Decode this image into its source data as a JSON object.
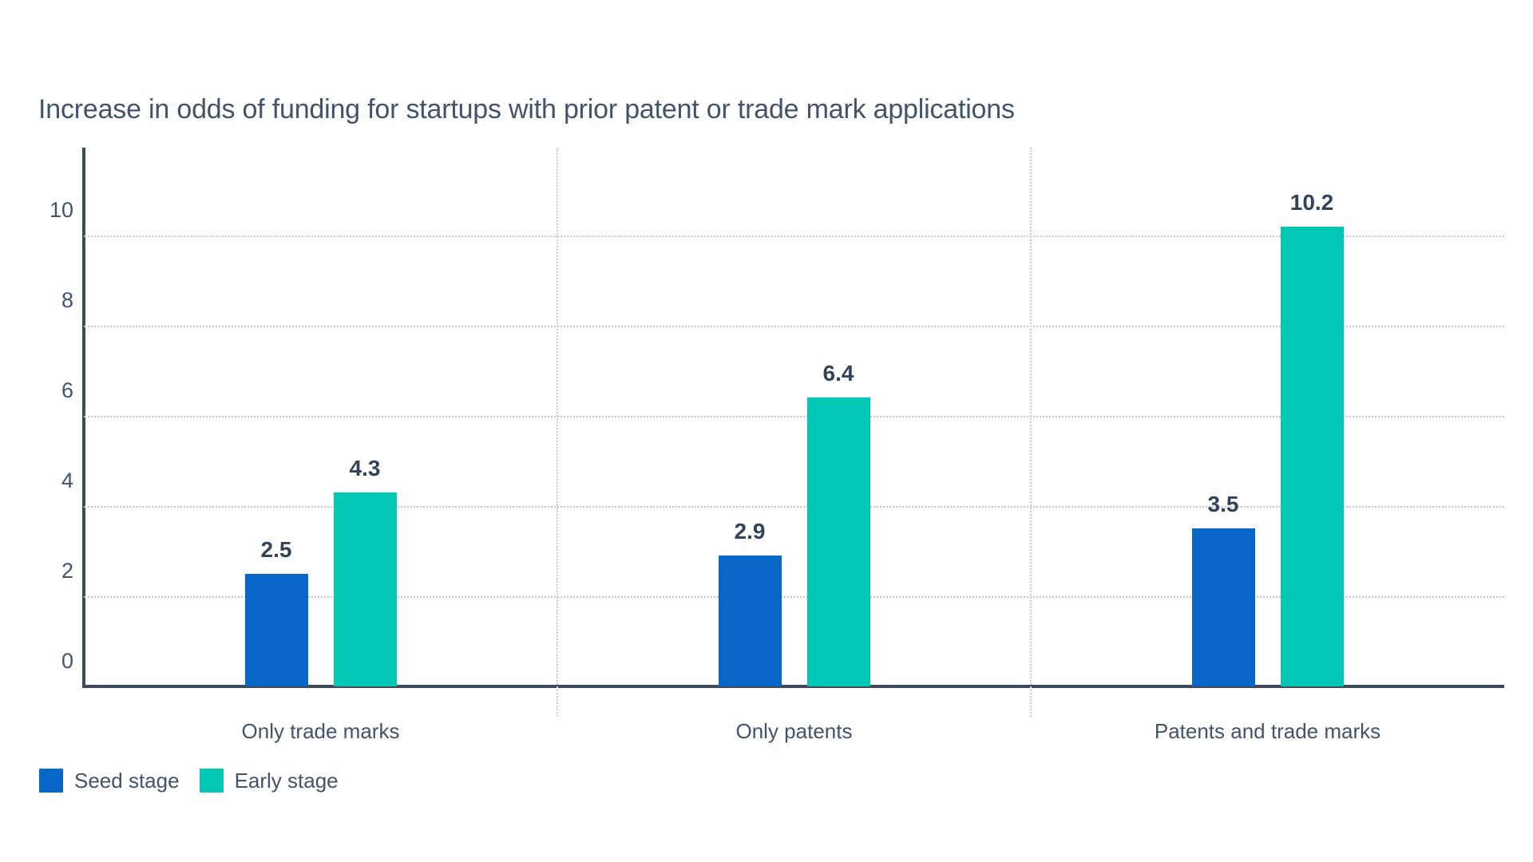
{
  "chart_data": {
    "type": "bar",
    "title": "Increase in odds of funding for startups with prior patent or trade mark applications",
    "categories": [
      "Only trade marks",
      "Only patents",
      "Patents and trade marks"
    ],
    "series": [
      {
        "name": "Seed stage",
        "color": "#0766c8",
        "values": [
          2.5,
          2.9,
          3.5
        ]
      },
      {
        "name": "Early stage",
        "color": "#02c7b5",
        "values": [
          4.3,
          6.4,
          10.2
        ]
      }
    ],
    "yticks": [
      0,
      2,
      4,
      6,
      8,
      10
    ],
    "ylim": [
      0,
      11.9
    ],
    "xlabel": "",
    "ylabel": "",
    "grid": "horizontal dotted gridlines at even values, dotted vertical category separators",
    "legend_position": "bottom-left",
    "value_labels": true,
    "value_label_texts": [
      "2.5",
      "2.9",
      "3.5",
      "4.3",
      "6.4",
      "10.2"
    ]
  },
  "styles": {
    "axis_color": "#3c4a5a",
    "gridline_color": "#c2c5c8",
    "title_color": "#42536a",
    "tick_label_color": "#42536a",
    "value_label_color": "#33435a",
    "background_color": "#ffffff"
  }
}
